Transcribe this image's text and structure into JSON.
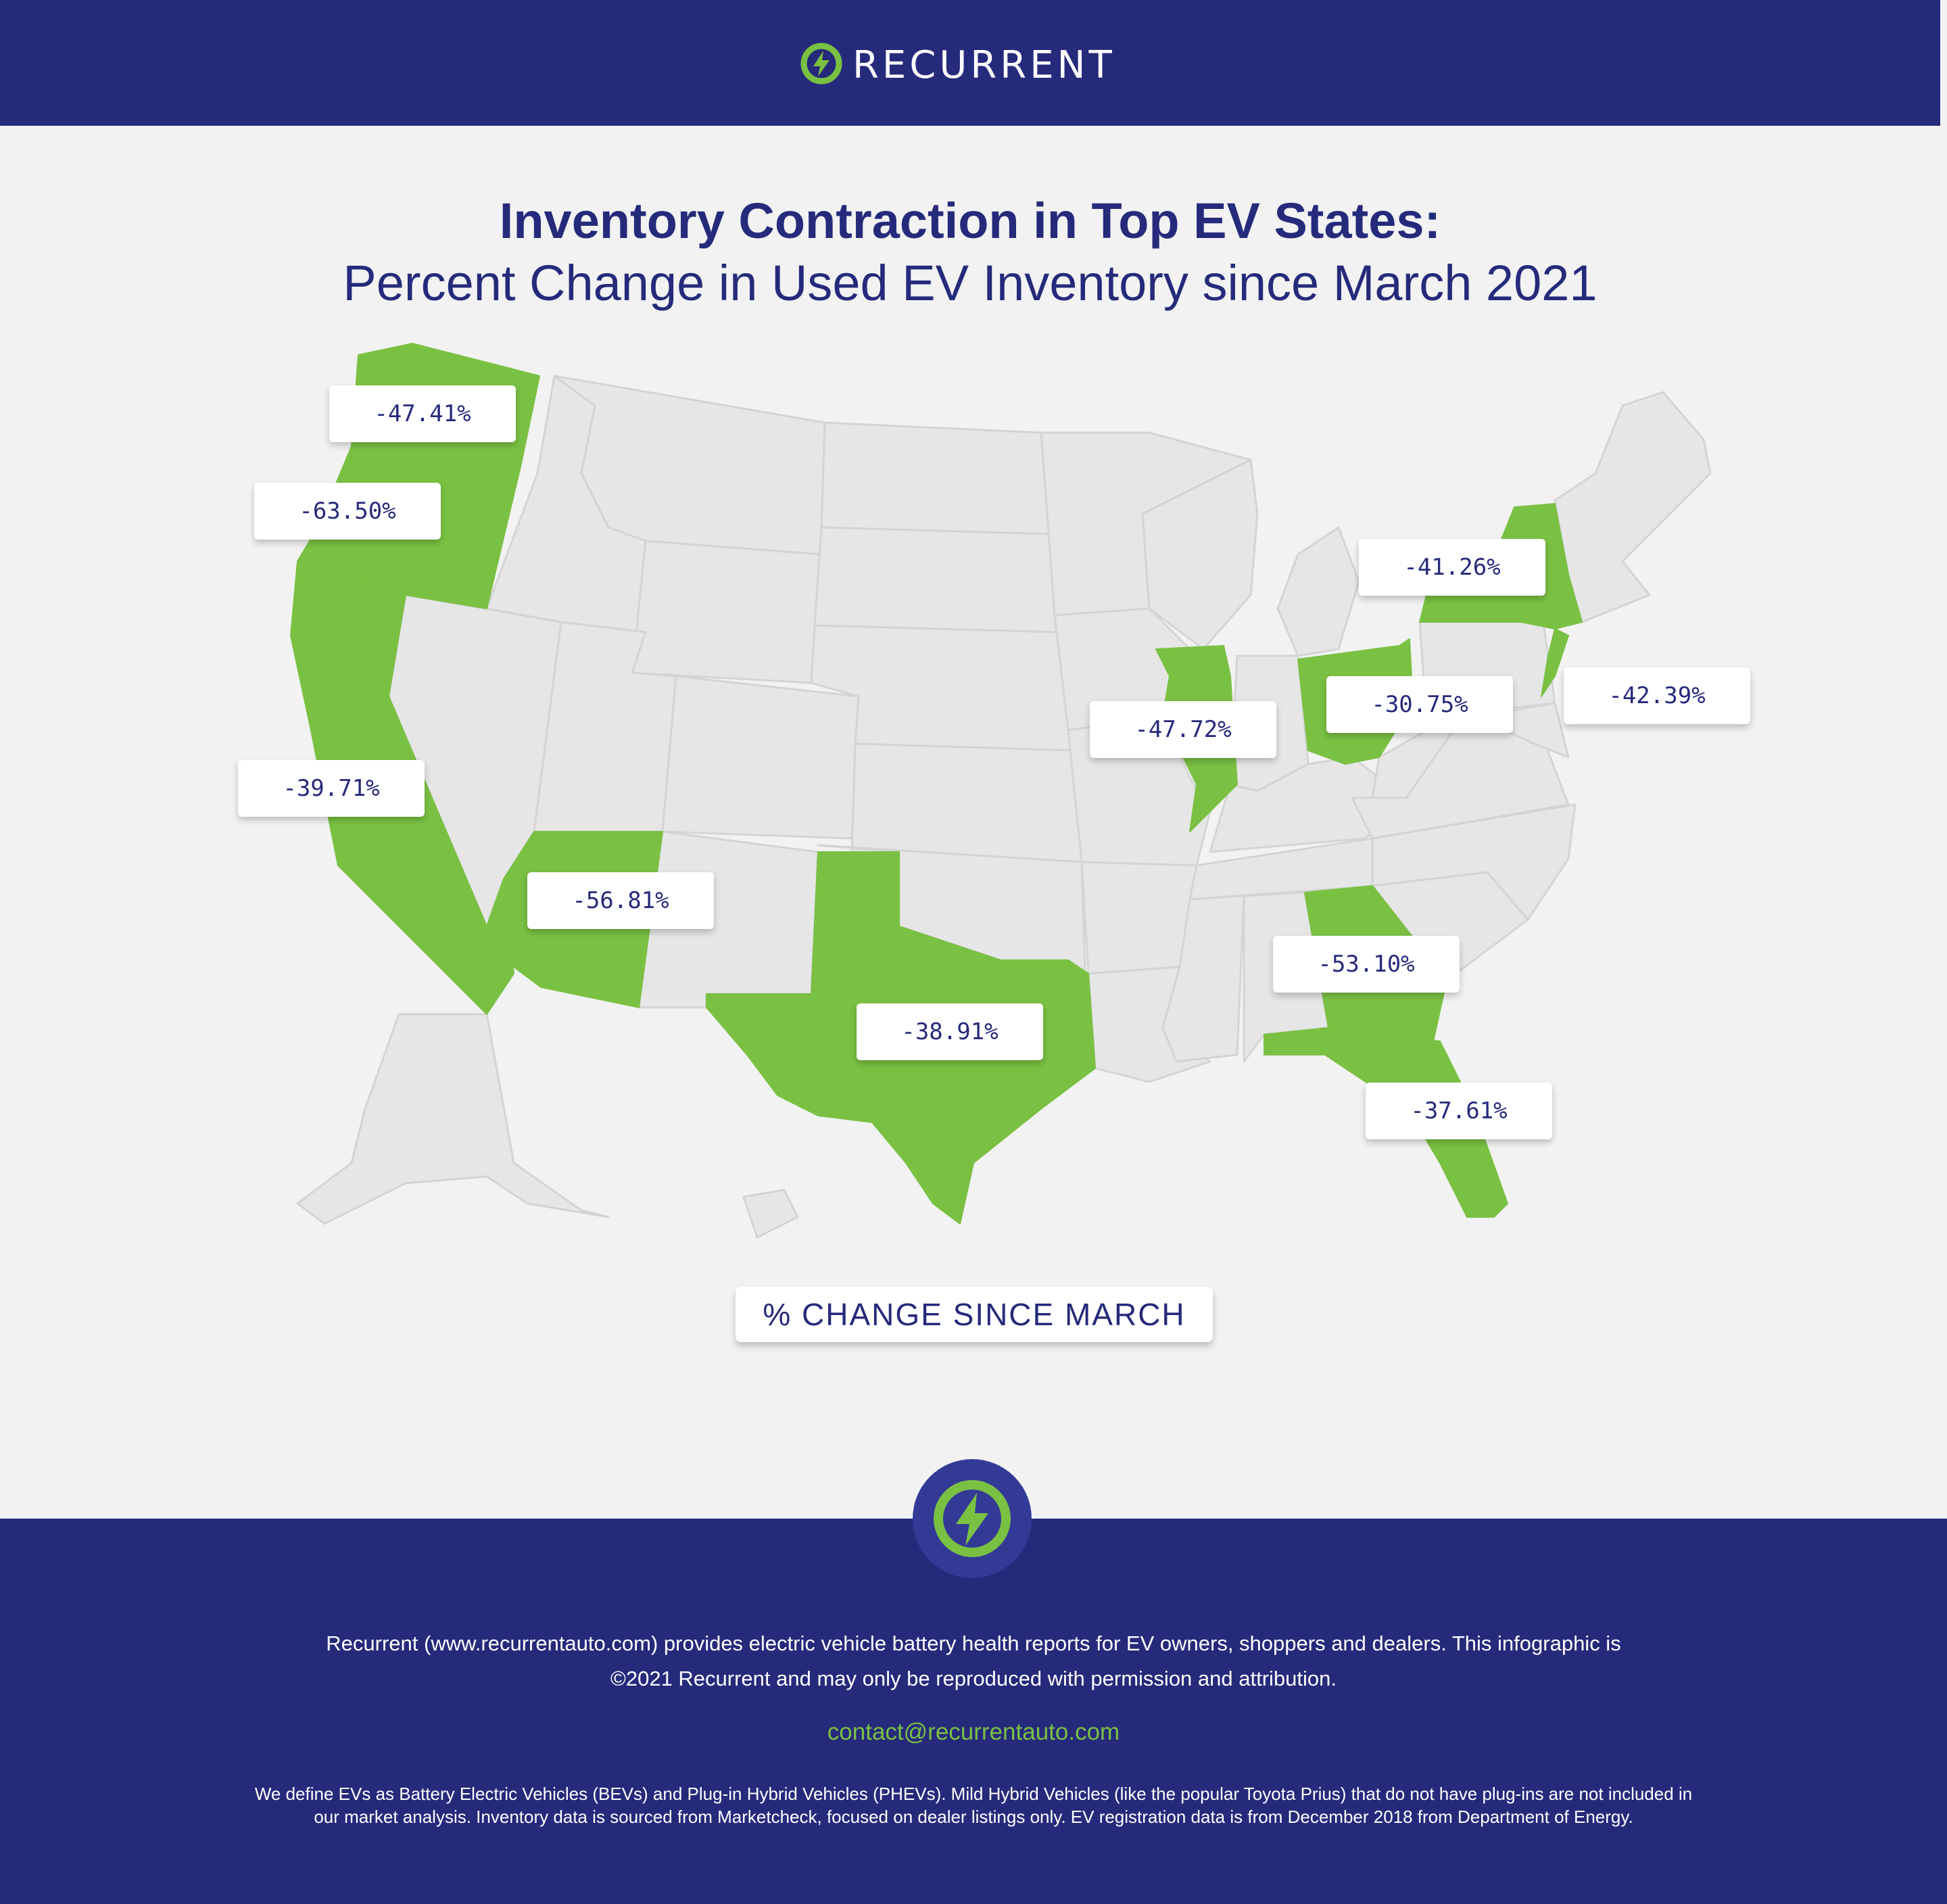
{
  "brand": {
    "name": "RECURRENT",
    "icon": "lightning-bolt-icon"
  },
  "header": {
    "title": "Inventory Contraction in Top EV States:",
    "subtitle": "Percent Change in Used EV Inventory since March 2021"
  },
  "colors": {
    "navy": "#262a7b",
    "highlight_green": "#7ac143",
    "state_gray": "#e6e6e6",
    "background": "#f2f2f2"
  },
  "map": {
    "legend_label": "% CHANGE SINCE MARCH",
    "states": [
      {
        "state": "Washington",
        "change": "-47.41%"
      },
      {
        "state": "Oregon",
        "change": "-63.50%"
      },
      {
        "state": "California",
        "change": "-39.71%"
      },
      {
        "state": "Arizona",
        "change": "-56.81%"
      },
      {
        "state": "Texas",
        "change": "-38.91%"
      },
      {
        "state": "Illinois",
        "change": "-47.72%"
      },
      {
        "state": "Ohio",
        "change": "-30.75%"
      },
      {
        "state": "New York",
        "change": "-41.26%"
      },
      {
        "state": "New Jersey",
        "change": "-42.39%"
      },
      {
        "state": "Georgia",
        "change": "-53.10%"
      },
      {
        "state": "Florida",
        "change": "-37.61%"
      }
    ]
  },
  "footer": {
    "line1": "Recurrent (www.recurrentauto.com) provides electric vehicle battery health reports for EV owners, shoppers and dealers. This infographic is",
    "line2": "©2021 Recurrent and may only be reproduced with permission and attribution.",
    "email": "contact@recurrentauto.com",
    "note_line1": "We define EVs as Battery Electric Vehicles (BEVs) and Plug-in Hybrid Vehicles (PHEVs). Mild Hybrid Vehicles (like the popular Toyota Prius) that do not have plug-ins are not included in",
    "note_line2": "our market analysis. Inventory data is sourced from Marketcheck, focused on dealer listings only. EV registration data is from December 2018 from Department of Energy."
  }
}
